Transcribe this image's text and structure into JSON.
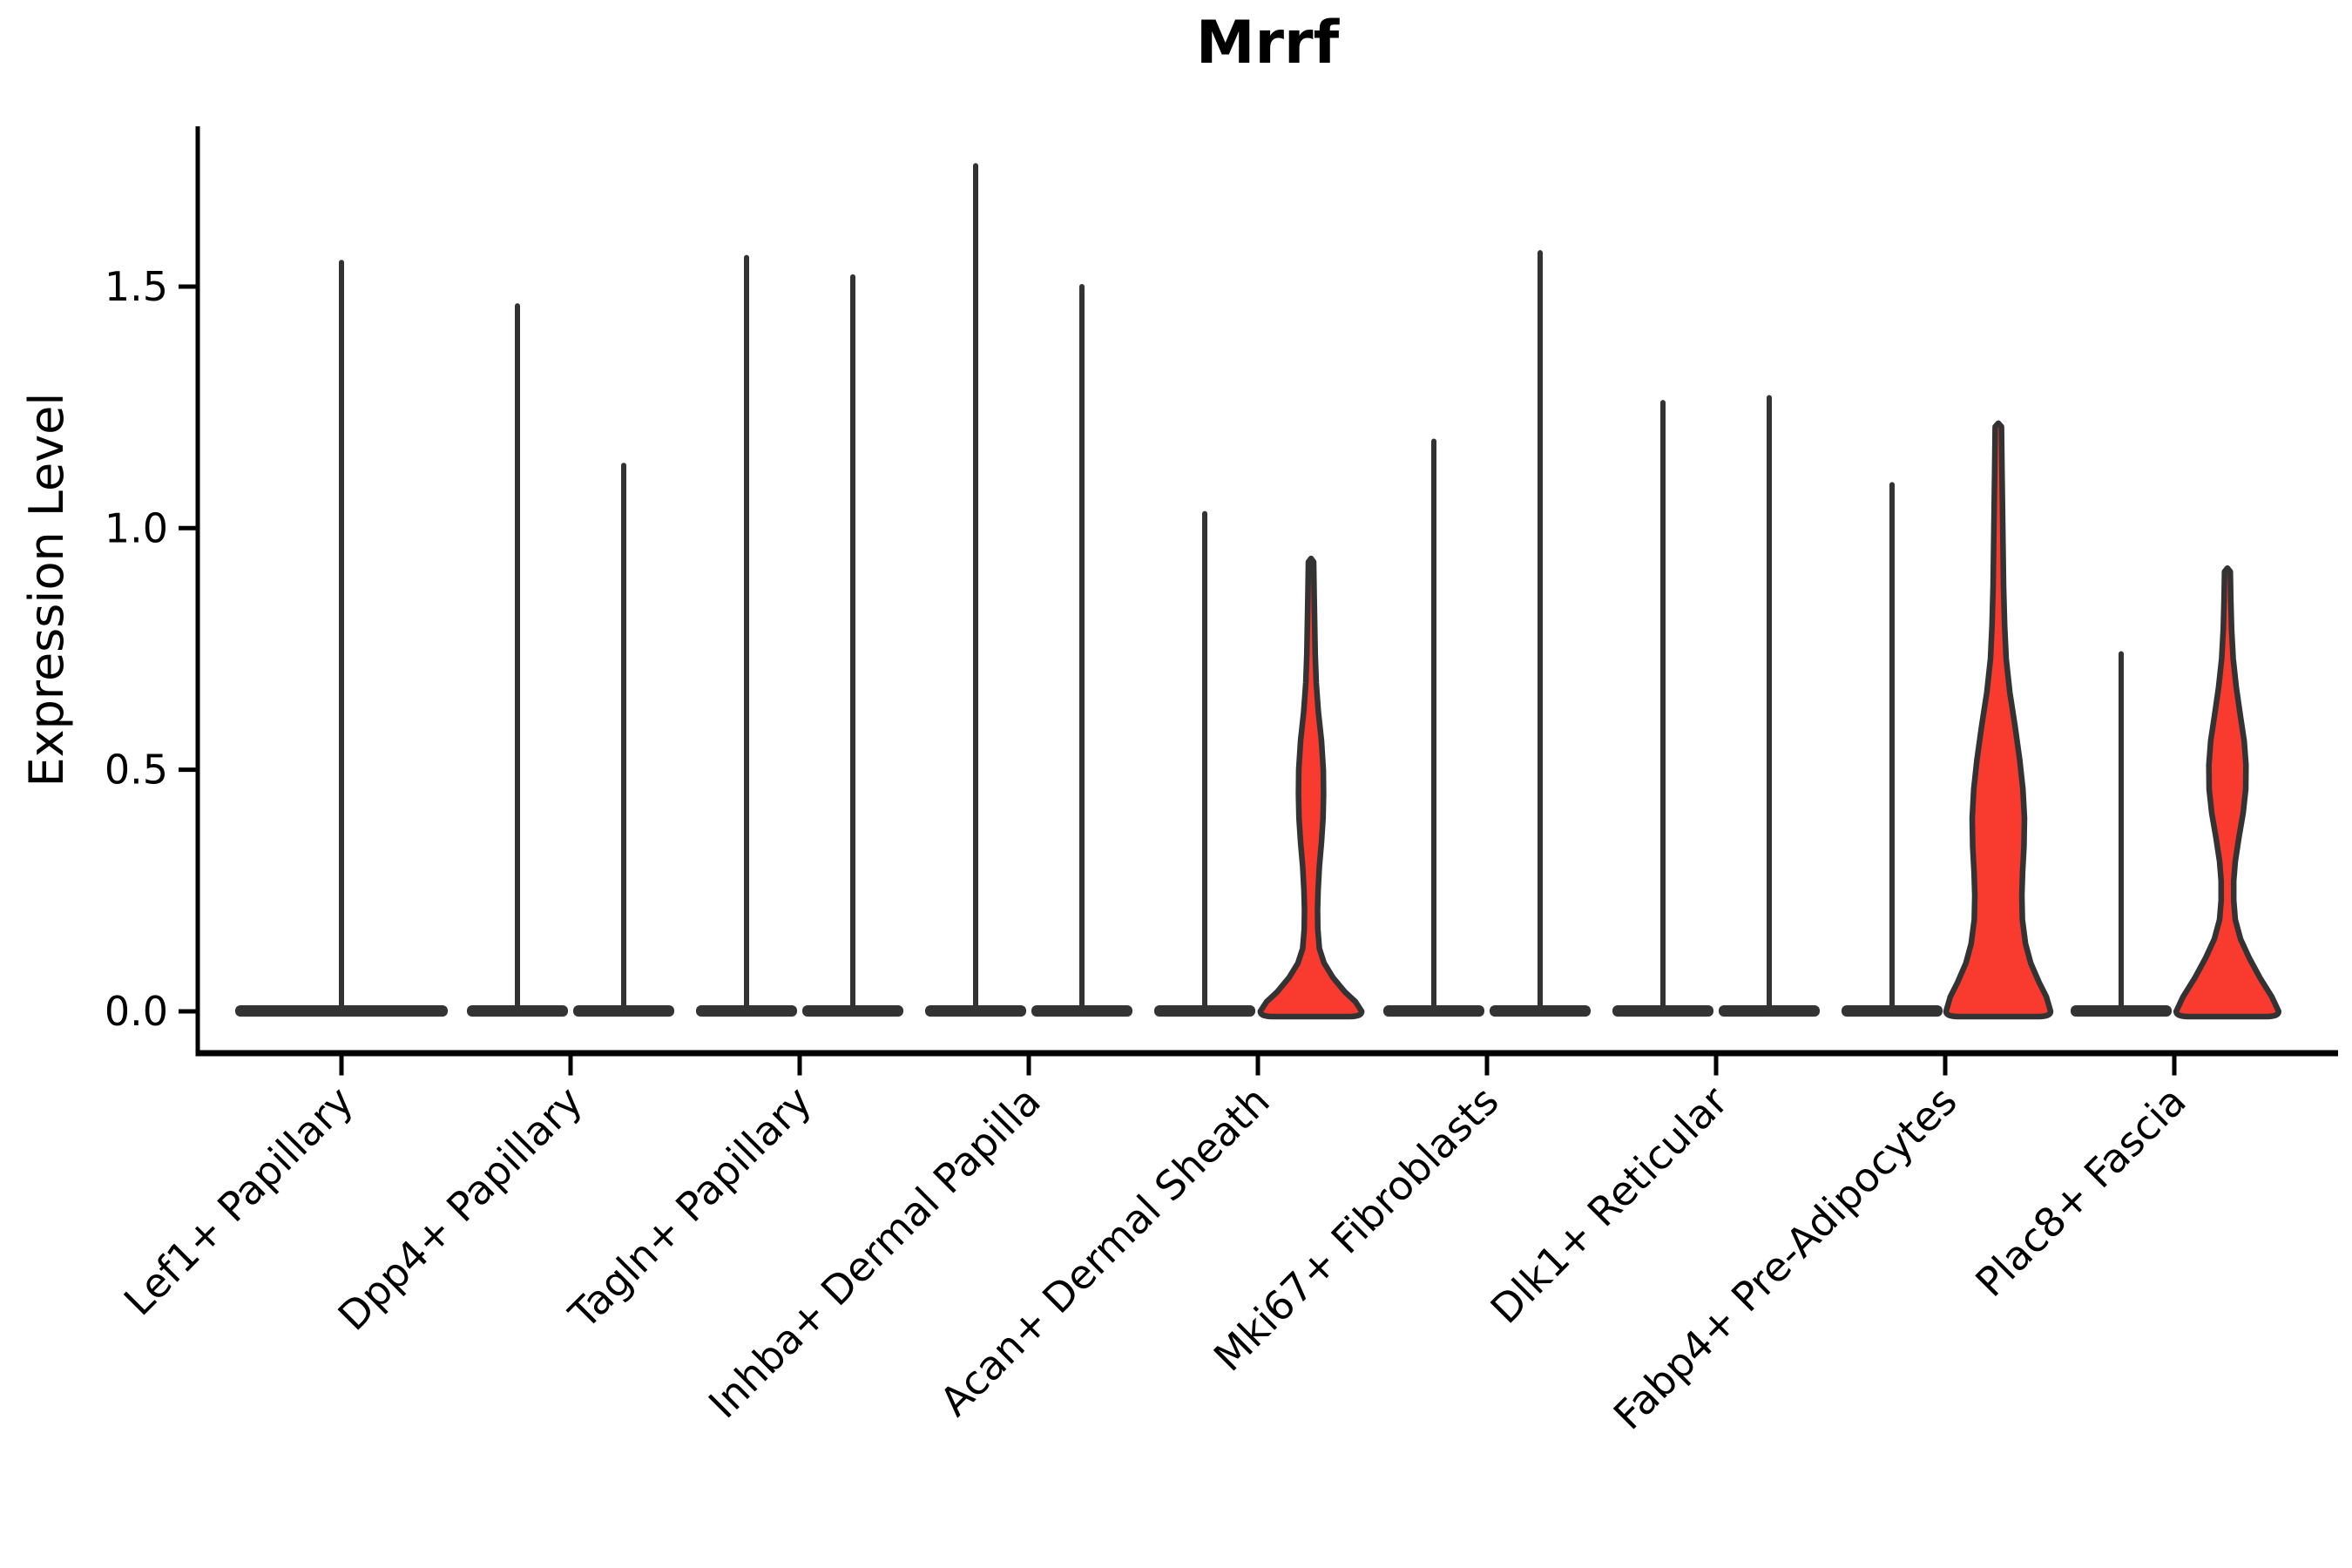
{
  "title": "Mrrf",
  "y_axis": {
    "label": "Expression Level",
    "ticks": [
      {
        "label": "0.0",
        "value": 0.0
      },
      {
        "label": "0.5",
        "value": 0.5
      },
      {
        "label": "1.0",
        "value": 1.0
      },
      {
        "label": "1.5",
        "value": 1.5
      }
    ]
  },
  "colors": {
    "red_fill": "#F93A2F",
    "violin_outline": "#333333",
    "axis": "#000000",
    "text": "#000000",
    "background": "#ffffff"
  },
  "chart_data": {
    "type": "violin",
    "title": "Mrrf",
    "xlabel": "",
    "ylabel": "Expression Level",
    "ylim": [
      0,
      1.83
    ],
    "yticks": [
      0.0,
      0.5,
      1.0,
      1.5
    ],
    "grid": false,
    "legend": "none",
    "categories": [
      "Lef1+ Papillary",
      "Dpp4+ Papillary",
      "Tagln+ Papillary",
      "Inhba+ Dermal Papilla",
      "Acan+ Dermal Sheath",
      "Mki67+ Fibroblasts",
      "Dlk1+ Reticular",
      "Fabp4+ Pre-Adipocytes",
      "Plac8+ Fascia"
    ],
    "violin_description": "Most violins are flat at 0 (nearly all cells at zero expression) with a thin spike to the max value; three violins (right-hand of Acan+ Dermal Sheath, Fabp4+ Pre-Adipocytes, Plac8+ Fascia) are red-filled with visible density bulges.",
    "violins": [
      {
        "category_index": 0,
        "category": "Lef1+ Papillary",
        "position": "center",
        "max": 1.55,
        "style": "black"
      },
      {
        "category_index": 1,
        "category": "Dpp4+ Papillary",
        "position": "left",
        "max": 1.46,
        "style": "black"
      },
      {
        "category_index": 1,
        "category": "Dpp4+ Papillary",
        "position": "right",
        "max": 1.13,
        "style": "black"
      },
      {
        "category_index": 2,
        "category": "Tagln+ Papillary",
        "position": "left",
        "max": 1.56,
        "style": "black"
      },
      {
        "category_index": 2,
        "category": "Tagln+ Papillary",
        "position": "right",
        "max": 1.52,
        "style": "black"
      },
      {
        "category_index": 3,
        "category": "Inhba+ Dermal Papilla",
        "position": "left",
        "max": 1.75,
        "style": "black"
      },
      {
        "category_index": 3,
        "category": "Inhba+ Dermal Papilla",
        "position": "right",
        "max": 1.5,
        "style": "black"
      },
      {
        "category_index": 4,
        "category": "Acan+ Dermal Sheath",
        "position": "left",
        "max": 1.03,
        "style": "black"
      },
      {
        "category_index": 4,
        "category": "Acan+ Dermal Sheath",
        "position": "right",
        "max": 0.93,
        "style": "red",
        "profile": [
          [
            0.93,
            0.05
          ],
          [
            0.86,
            0.06
          ],
          [
            0.8,
            0.07
          ],
          [
            0.74,
            0.08
          ],
          [
            0.68,
            0.1
          ],
          [
            0.62,
            0.14
          ],
          [
            0.56,
            0.2
          ],
          [
            0.5,
            0.235
          ],
          [
            0.45,
            0.24
          ],
          [
            0.4,
            0.23
          ],
          [
            0.35,
            0.2
          ],
          [
            0.3,
            0.16
          ],
          [
            0.25,
            0.135
          ],
          [
            0.21,
            0.125
          ],
          [
            0.17,
            0.13
          ],
          [
            0.13,
            0.16
          ],
          [
            0.1,
            0.25
          ],
          [
            0.07,
            0.42
          ],
          [
            0.04,
            0.65
          ],
          [
            0.02,
            0.85
          ],
          [
            0.0,
            0.97
          ]
        ]
      },
      {
        "category_index": 5,
        "category": "Mki67+ Fibroblasts",
        "position": "left",
        "max": 1.18,
        "style": "black"
      },
      {
        "category_index": 5,
        "category": "Mki67+ Fibroblasts",
        "position": "right",
        "max": 1.57,
        "style": "black"
      },
      {
        "category_index": 6,
        "category": "Dlk1+ Reticular",
        "position": "left",
        "max": 1.26,
        "style": "black"
      },
      {
        "category_index": 6,
        "category": "Dlk1+ Reticular",
        "position": "right",
        "max": 1.27,
        "style": "black"
      },
      {
        "category_index": 7,
        "category": "Fabp4+ Pre-Adipocytes",
        "position": "left",
        "max": 1.09,
        "style": "black"
      },
      {
        "category_index": 7,
        "category": "Fabp4+ Pre-Adipocytes",
        "position": "right",
        "max": 1.21,
        "style": "red",
        "profile": [
          [
            1.21,
            0.06
          ],
          [
            1.12,
            0.07
          ],
          [
            1.04,
            0.08
          ],
          [
            0.96,
            0.09
          ],
          [
            0.88,
            0.1
          ],
          [
            0.8,
            0.12
          ],
          [
            0.73,
            0.15
          ],
          [
            0.66,
            0.22
          ],
          [
            0.59,
            0.32
          ],
          [
            0.52,
            0.41
          ],
          [
            0.46,
            0.47
          ],
          [
            0.4,
            0.5
          ],
          [
            0.34,
            0.49
          ],
          [
            0.29,
            0.465
          ],
          [
            0.24,
            0.45
          ],
          [
            0.19,
            0.46
          ],
          [
            0.14,
            0.52
          ],
          [
            0.1,
            0.62
          ],
          [
            0.06,
            0.78
          ],
          [
            0.03,
            0.92
          ],
          [
            0.0,
            1.0
          ]
        ]
      },
      {
        "category_index": 8,
        "category": "Plac8+ Fascia",
        "position": "left",
        "max": 0.74,
        "style": "black"
      },
      {
        "category_index": 8,
        "category": "Plac8+ Fascia",
        "position": "right",
        "max": 0.91,
        "style": "red",
        "profile": [
          [
            0.91,
            0.055
          ],
          [
            0.85,
            0.065
          ],
          [
            0.79,
            0.08
          ],
          [
            0.73,
            0.11
          ],
          [
            0.67,
            0.17
          ],
          [
            0.61,
            0.25
          ],
          [
            0.56,
            0.32
          ],
          [
            0.51,
            0.355
          ],
          [
            0.46,
            0.35
          ],
          [
            0.41,
            0.3
          ],
          [
            0.36,
            0.22
          ],
          [
            0.31,
            0.15
          ],
          [
            0.27,
            0.12
          ],
          [
            0.23,
            0.12
          ],
          [
            0.19,
            0.15
          ],
          [
            0.15,
            0.25
          ],
          [
            0.11,
            0.42
          ],
          [
            0.07,
            0.62
          ],
          [
            0.03,
            0.85
          ],
          [
            0.0,
            0.98
          ]
        ]
      }
    ]
  }
}
